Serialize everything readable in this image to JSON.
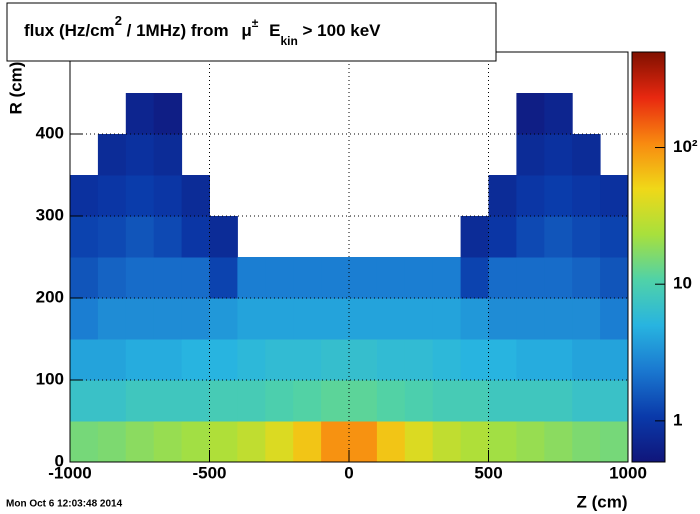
{
  "chart_data": {
    "type": "heatmap",
    "title_parts": [
      "flux (Hz/cm",
      "2",
      " / 1MHz) from ",
      "μ",
      "±",
      " E",
      "kin",
      " > 100 keV"
    ],
    "x_label": "Z (cm)",
    "y_label": "R (cm)",
    "timestamp": "Mon Oct  6 12:03:48 2014",
    "xlim": [
      -1000,
      1000
    ],
    "ylim": [
      0,
      500
    ],
    "xticks": [
      -1000,
      -500,
      0,
      500,
      1000
    ],
    "yticks": [
      0,
      100,
      200,
      300,
      400
    ],
    "zlim": [
      0.5,
      500
    ],
    "zticks": [
      1,
      10,
      {
        "value": 100,
        "label": "10²"
      }
    ],
    "z_log": true,
    "grid": true,
    "colormap": [
      "#10157a",
      "#0a3aaa",
      "#1a78d0",
      "#28b4e0",
      "#50d2a8",
      "#a8e03c",
      "#f0d818",
      "#f88a10",
      "#e82810",
      "#801000"
    ],
    "xbins": [
      -1000,
      -900,
      -800,
      -700,
      -600,
      -500,
      -400,
      -300,
      -200,
      -100,
      0,
      100,
      200,
      300,
      400,
      500,
      600,
      700,
      800,
      900,
      1000
    ],
    "ybins": [
      0,
      50,
      100,
      150,
      200,
      250,
      300,
      350,
      400,
      450,
      500
    ],
    "z": [
      [
        15,
        16,
        18,
        20,
        22,
        25,
        30,
        40,
        60,
        100,
        100,
        60,
        40,
        30,
        25,
        22,
        20,
        18,
        16,
        15
      ],
      [
        7,
        7,
        8,
        8,
        8,
        9,
        9,
        10,
        11,
        12,
        12,
        11,
        10,
        9,
        9,
        8,
        8,
        8,
        7,
        7
      ],
      [
        4,
        4,
        4.5,
        4.5,
        5,
        5,
        5.5,
        6,
        6,
        6.5,
        6.5,
        6,
        6,
        5.5,
        5,
        5,
        4.5,
        4.5,
        4,
        4
      ],
      [
        2.5,
        3,
        3,
        3,
        3,
        3.5,
        4,
        4,
        4,
        4,
        4,
        4,
        4,
        4,
        3.5,
        3,
        3,
        3,
        3,
        2.5
      ],
      [
        1.5,
        1.8,
        2,
        2,
        2,
        1.2,
        2.5,
        2.5,
        2.5,
        2.5,
        2.5,
        2.5,
        2.5,
        2.5,
        1.2,
        2,
        2,
        2,
        1.8,
        1.5
      ],
      [
        1.2,
        1.3,
        1.5,
        1.3,
        1,
        0.8,
        null,
        null,
        null,
        null,
        null,
        null,
        null,
        null,
        0.8,
        1,
        1.3,
        1.5,
        1.3,
        1.2
      ],
      [
        0.9,
        1,
        1.1,
        1,
        0.8,
        null,
        null,
        null,
        null,
        null,
        null,
        null,
        null,
        null,
        null,
        0.8,
        1,
        1.1,
        1,
        0.9
      ],
      [
        null,
        0.8,
        0.9,
        0.8,
        null,
        null,
        null,
        null,
        null,
        null,
        null,
        null,
        null,
        null,
        null,
        null,
        0.8,
        0.9,
        0.8,
        null
      ],
      [
        null,
        null,
        0.7,
        0.6,
        null,
        null,
        null,
        null,
        null,
        null,
        null,
        null,
        null,
        null,
        null,
        null,
        0.6,
        0.7,
        null,
        null
      ],
      [
        null,
        null,
        null,
        null,
        null,
        null,
        null,
        null,
        null,
        null,
        null,
        null,
        null,
        null,
        null,
        null,
        null,
        null,
        null,
        null
      ]
    ]
  }
}
